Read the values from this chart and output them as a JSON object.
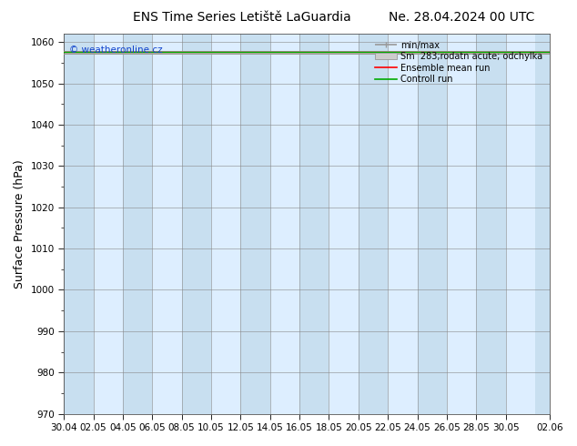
{
  "title_left": "ENS Time Series Letiště LaGuardia",
  "title_right": "Ne. 28.04.2024 00 UTC",
  "ylabel": "Surface Pressure (hPa)",
  "watermark": "© weatheronline.cz",
  "ylim": [
    970,
    1062
  ],
  "yticks": [
    970,
    980,
    990,
    1000,
    1010,
    1020,
    1030,
    1040,
    1050,
    1060
  ],
  "background_color": "#ffffff",
  "plot_bg_color": "#ddeeff",
  "band_colors": [
    "#c8dff0",
    "#ddeeff"
  ],
  "legend_entries": [
    "min/max",
    "Sm  283;rodatn acute; odchylka",
    "Ensemble mean run",
    "Controll run"
  ],
  "legend_line_colors": [
    "#aaaaaa",
    "#bbbbbb",
    "#ff0000",
    "#00aa00"
  ],
  "title_fontsize": 10,
  "tick_fontsize": 7.5,
  "ylabel_fontsize": 9,
  "x_tick_labels": [
    "30.04",
    "02.05",
    "04.05",
    "06.05",
    "08.05",
    "10.05",
    "12.05",
    "14.05",
    "16.05",
    "18.05",
    "20.05",
    "22.05",
    "24.05",
    "26.05",
    "28.05",
    "30.05",
    "02.06"
  ],
  "x_tick_pos": [
    0,
    2,
    4,
    6,
    8,
    10,
    12,
    14,
    16,
    18,
    20,
    22,
    24,
    26,
    28,
    30,
    33
  ],
  "x_min": 0,
  "x_max": 33,
  "num_bands": 17
}
